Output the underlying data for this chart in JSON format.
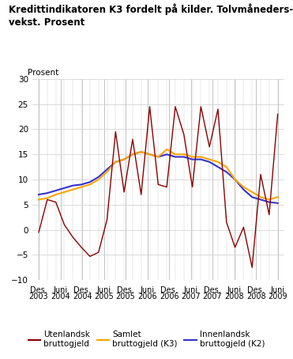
{
  "title_line1": "Kredittindikatoren K3 fordelt på kilder. Tolvmånedersvekst. Prosent",
  "ylabel": "Prosent",
  "ylim": [
    -10,
    30
  ],
  "yticks": [
    -10,
    -5,
    0,
    5,
    10,
    15,
    20,
    25,
    30
  ],
  "x_labels_top": [
    "Des.",
    "Juni",
    "Des.",
    "Juni",
    "Des.",
    "Juni",
    "Des.",
    "Juni",
    "Des.",
    "Juni",
    "Des.",
    "Juni"
  ],
  "x_labels_bot": [
    "2003",
    "2004",
    "2004",
    "2005",
    "2005",
    "2006",
    "2006",
    "2007",
    "2007",
    "2008",
    "2008",
    "2009"
  ],
  "legend": [
    {
      "label": "Utenlandsk\nbruttogjeld",
      "color": "#8B0000"
    },
    {
      "label": "Samlet\nbruttogjeld (K3)",
      "color": "#FFA500"
    },
    {
      "label": "Innenlandsk\nbruttogjeld (K2)",
      "color": "#3333CC"
    }
  ],
  "utenlandsk": [
    -0.5,
    6.0,
    5.5,
    1.0,
    -1.5,
    -3.5,
    -5.3,
    -4.5,
    2.0,
    19.5,
    7.5,
    18.0,
    7.0,
    24.5,
    9.0,
    8.5,
    24.5,
    19.0,
    8.5,
    24.5,
    16.5,
    24.0,
    1.5,
    -3.5,
    0.5,
    -7.5,
    11.0,
    3.0,
    23.0
  ],
  "samlet": [
    6.0,
    6.3,
    7.0,
    7.5,
    8.0,
    8.5,
    9.0,
    10.0,
    11.5,
    13.5,
    14.0,
    15.0,
    15.5,
    15.0,
    14.5,
    16.0,
    15.0,
    15.0,
    14.5,
    14.5,
    14.0,
    13.5,
    12.5,
    10.0,
    8.5,
    7.5,
    6.5,
    6.0,
    6.5
  ],
  "innenlandsk": [
    7.0,
    7.3,
    7.8,
    8.3,
    8.8,
    9.0,
    9.5,
    10.5,
    12.0,
    13.5,
    14.0,
    15.0,
    15.5,
    15.0,
    14.5,
    15.0,
    14.5,
    14.5,
    14.0,
    14.0,
    13.5,
    12.5,
    11.5,
    10.0,
    8.0,
    6.5,
    6.0,
    5.5,
    5.3
  ]
}
